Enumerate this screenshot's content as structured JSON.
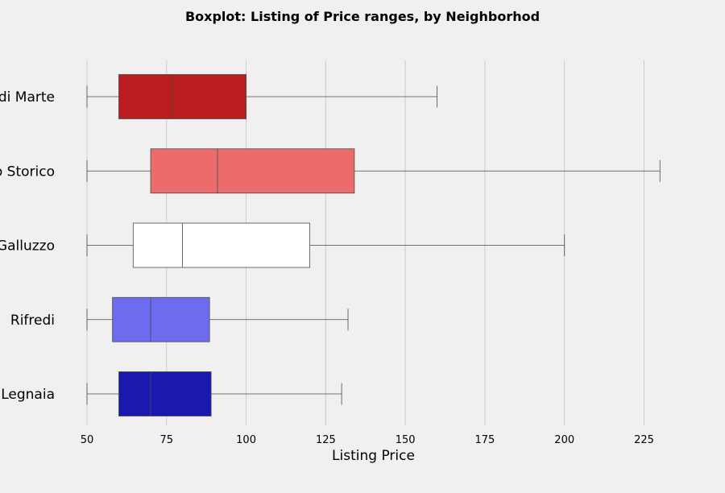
{
  "chart_data": {
    "type": "box",
    "title": "Boxplot: Listing of Price ranges, by Neighborhod",
    "xlabel": "Listing Price",
    "ylabel": "",
    "xlim": [
      40,
      247
    ],
    "xticks": [
      50,
      75,
      100,
      125,
      150,
      175,
      200,
      225
    ],
    "grid": true,
    "categories": [
      {
        "label": "Campo di Marte",
        "min": 50,
        "q1": 60,
        "median": 76.5,
        "q3": 100,
        "max": 160,
        "color": "#bb1c1f"
      },
      {
        "label": "Centro Storico",
        "min": 50,
        "q1": 70,
        "median": 91,
        "q3": 134,
        "max": 230,
        "color": "#ec6b6b"
      },
      {
        "label": "Gavinana Galluzzo",
        "min": 50,
        "q1": 64.5,
        "median": 80,
        "q3": 120,
        "max": 200,
        "color": "#ffffff"
      },
      {
        "label": "Rifredi",
        "min": 50,
        "q1": 58,
        "median": 70,
        "q3": 88.5,
        "max": 132,
        "color": "#6d6bee"
      },
      {
        "label": "Isolotto Legnaia",
        "min": 50,
        "q1": 60,
        "median": 70,
        "q3": 89,
        "max": 130,
        "color": "#1a18ae"
      }
    ]
  }
}
